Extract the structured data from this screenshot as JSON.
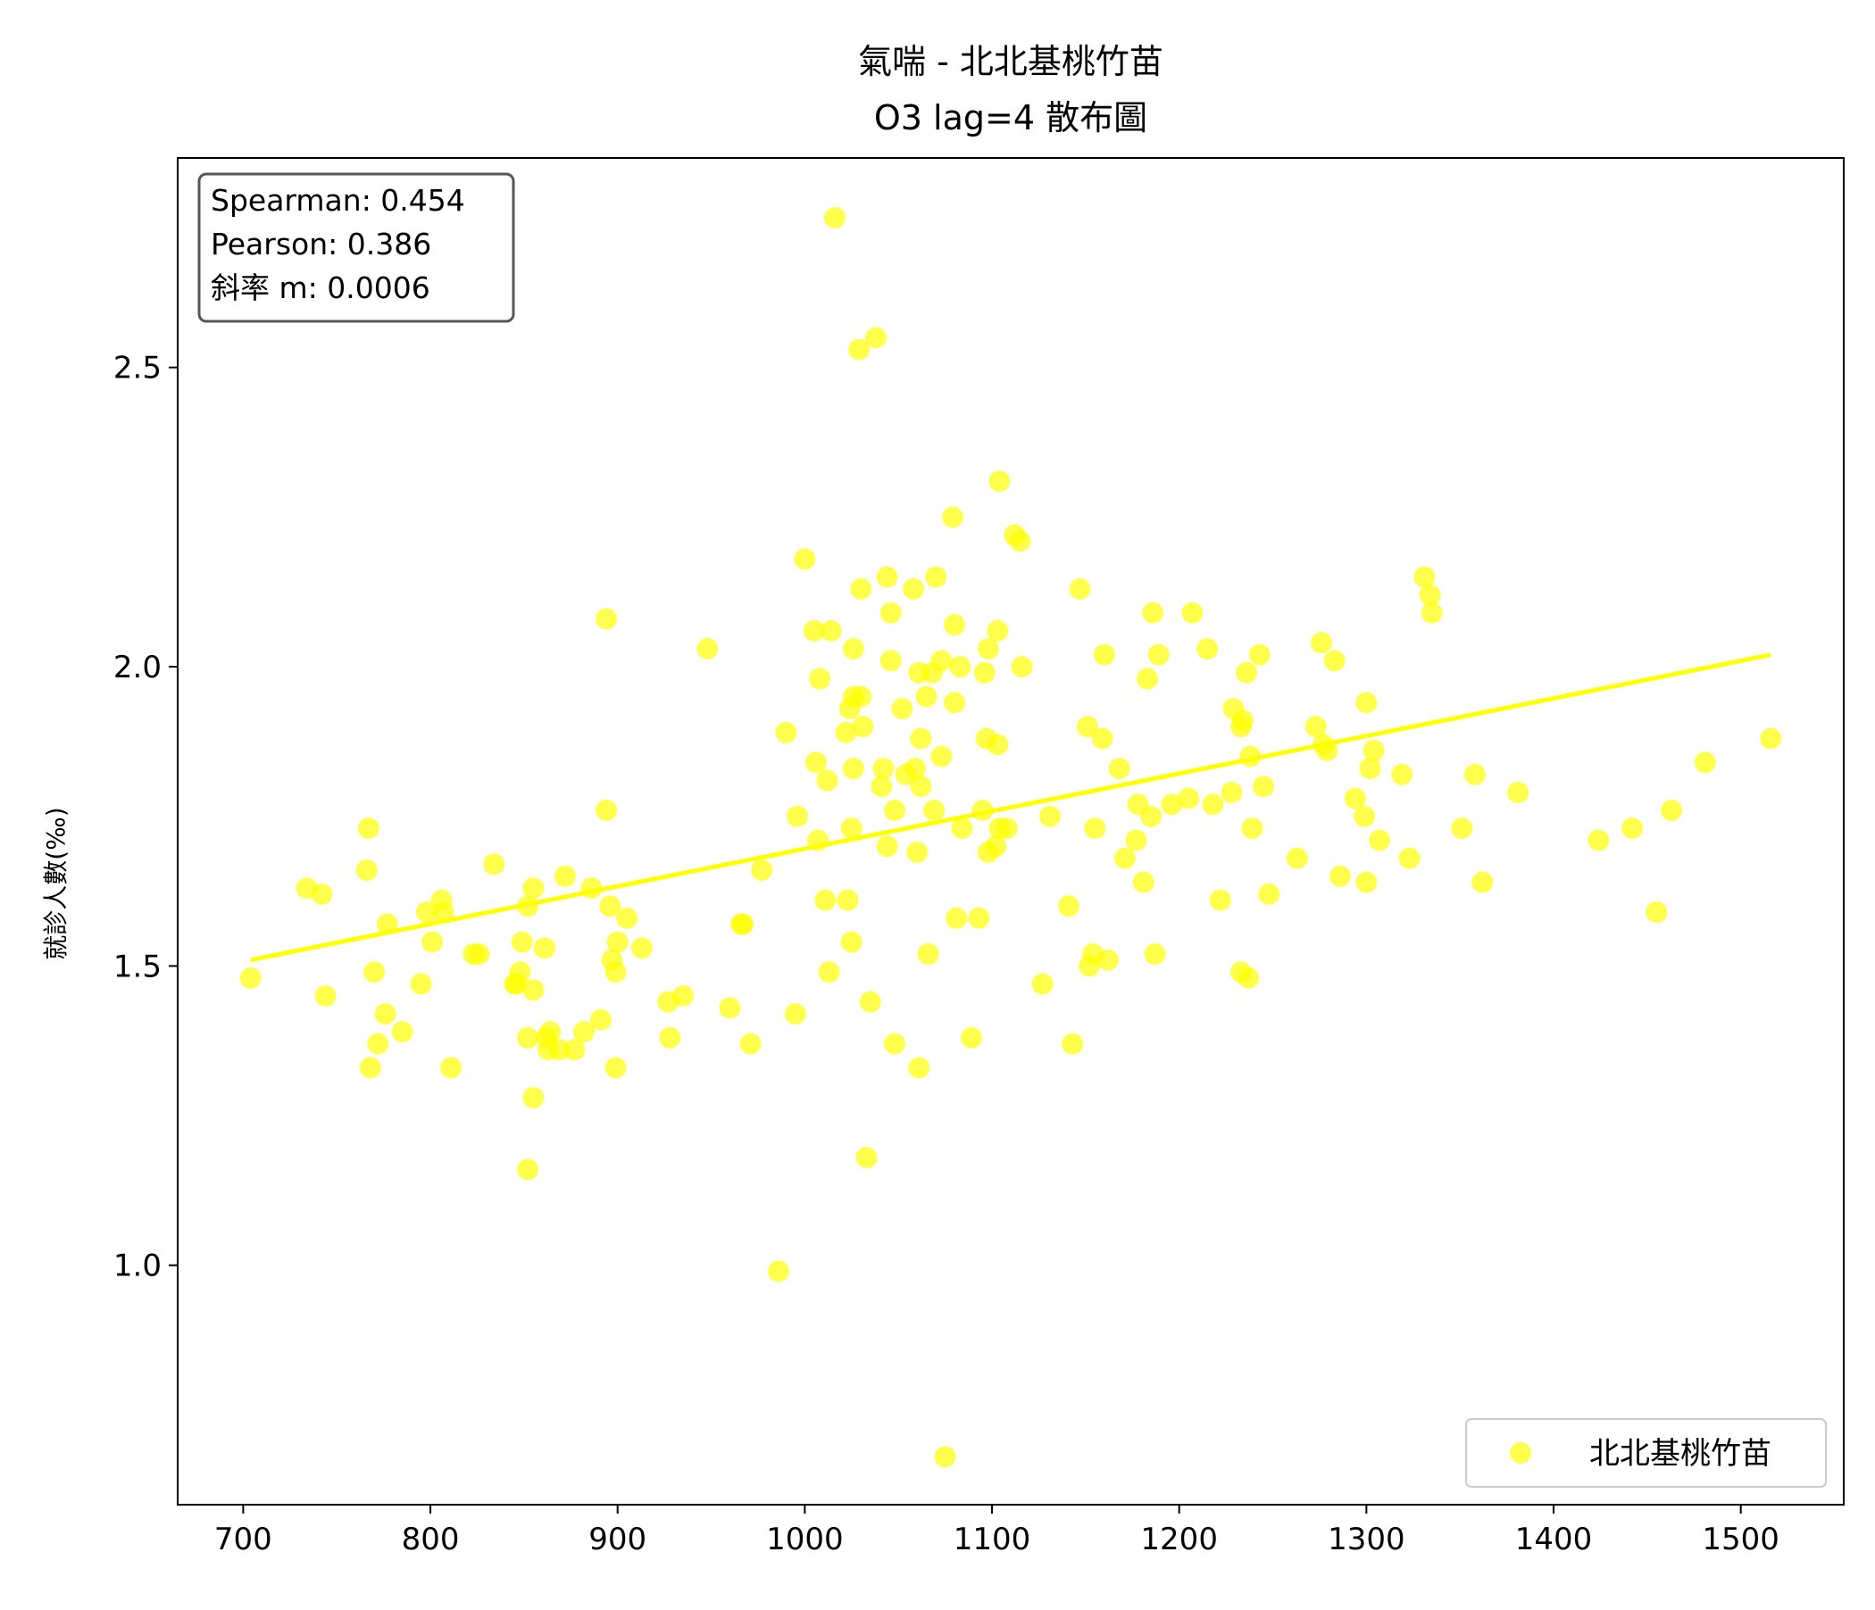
{
  "chart_data": {
    "type": "scatter",
    "title_line1": "氣喘 - 北北基桃竹苗",
    "title_line2": "O3 lag=4 散布圖",
    "xlabel": "",
    "ylabel": "就診人數(‰)",
    "xlim": [
      665,
      1555
    ],
    "ylim": [
      0.6,
      2.85
    ],
    "x_ticks": [
      700,
      800,
      900,
      1000,
      1100,
      1200,
      1300,
      1400,
      1500
    ],
    "y_ticks": [
      1.0,
      1.5,
      2.0,
      2.5
    ],
    "grid": false,
    "legend_position": "bottom-right",
    "stats": {
      "spearman": "Spearman: 0.454",
      "pearson": "Pearson: 0.386",
      "slope": "斜率 m: 0.0006"
    },
    "colors": {
      "points": "#ffff00",
      "fit_line": "#ffff00"
    },
    "fit_line": {
      "x": [
        704,
        1516
      ],
      "y": [
        1.51,
        2.02
      ]
    },
    "series": [
      {
        "name": "北北基桃竹苗",
        "points": [
          [
            704,
            1.48
          ],
          [
            734,
            1.63
          ],
          [
            742,
            1.62
          ],
          [
            744,
            1.45
          ],
          [
            766,
            1.66
          ],
          [
            767,
            1.73
          ],
          [
            768,
            1.33
          ],
          [
            770,
            1.49
          ],
          [
            772,
            1.37
          ],
          [
            776,
            1.42
          ],
          [
            777,
            1.57
          ],
          [
            785,
            1.39
          ],
          [
            795,
            1.47
          ],
          [
            798,
            1.59
          ],
          [
            801,
            1.54
          ],
          [
            806,
            1.61
          ],
          [
            807,
            1.59
          ],
          [
            811,
            1.33
          ],
          [
            823,
            1.52
          ],
          [
            826,
            1.52
          ],
          [
            834,
            1.67
          ],
          [
            845,
            1.47
          ],
          [
            846,
            1.47
          ],
          [
            848,
            1.49
          ],
          [
            849,
            1.54
          ],
          [
            852,
            1.6
          ],
          [
            852,
            1.38
          ],
          [
            852,
            1.16
          ],
          [
            855,
            1.63
          ],
          [
            855,
            1.46
          ],
          [
            855,
            1.28
          ],
          [
            861,
            1.53
          ],
          [
            862,
            1.38
          ],
          [
            863,
            1.36
          ],
          [
            864,
            1.39
          ],
          [
            869,
            1.36
          ],
          [
            872,
            1.65
          ],
          [
            877,
            1.36
          ],
          [
            882,
            1.39
          ],
          [
            886,
            1.63
          ],
          [
            891,
            1.41
          ],
          [
            894,
            2.08
          ],
          [
            894,
            1.76
          ],
          [
            896,
            1.6
          ],
          [
            897,
            1.51
          ],
          [
            899,
            1.49
          ],
          [
            899,
            1.33
          ],
          [
            900,
            1.54
          ],
          [
            905,
            1.58
          ],
          [
            913,
            1.53
          ],
          [
            927,
            1.44
          ],
          [
            928,
            1.38
          ],
          [
            935,
            1.45
          ],
          [
            948,
            2.03
          ],
          [
            960,
            1.43
          ],
          [
            966,
            1.57
          ],
          [
            967,
            1.57
          ],
          [
            971,
            1.37
          ],
          [
            977,
            1.66
          ],
          [
            986,
            0.99
          ],
          [
            990,
            1.89
          ],
          [
            995,
            1.42
          ],
          [
            996,
            1.75
          ],
          [
            1000,
            2.18
          ],
          [
            1005,
            2.06
          ],
          [
            1006,
            1.84
          ],
          [
            1007,
            1.71
          ],
          [
            1008,
            1.98
          ],
          [
            1011,
            1.61
          ],
          [
            1012,
            1.81
          ],
          [
            1013,
            1.49
          ],
          [
            1014,
            2.06
          ],
          [
            1016,
            2.75
          ],
          [
            1022,
            1.89
          ],
          [
            1023,
            1.61
          ],
          [
            1024,
            1.93
          ],
          [
            1025,
            1.73
          ],
          [
            1025,
            1.54
          ],
          [
            1026,
            2.03
          ],
          [
            1026,
            1.83
          ],
          [
            1026,
            1.95
          ],
          [
            1029,
            2.53
          ],
          [
            1030,
            2.13
          ],
          [
            1030,
            1.95
          ],
          [
            1031,
            1.9
          ],
          [
            1033,
            1.18
          ],
          [
            1035,
            1.44
          ],
          [
            1038,
            2.55
          ],
          [
            1041,
            1.8
          ],
          [
            1042,
            1.83
          ],
          [
            1044,
            1.7
          ],
          [
            1044,
            2.15
          ],
          [
            1046,
            2.09
          ],
          [
            1046,
            2.01
          ],
          [
            1048,
            1.76
          ],
          [
            1048,
            1.37
          ],
          [
            1052,
            1.93
          ],
          [
            1054,
            1.82
          ],
          [
            1058,
            2.13
          ],
          [
            1059,
            1.83
          ],
          [
            1060,
            1.69
          ],
          [
            1061,
            1.99
          ],
          [
            1061,
            1.33
          ],
          [
            1062,
            1.88
          ],
          [
            1062,
            1.8
          ],
          [
            1065,
            1.95
          ],
          [
            1066,
            1.52
          ],
          [
            1068,
            1.99
          ],
          [
            1069,
            1.76
          ],
          [
            1070,
            2.15
          ],
          [
            1073,
            2.01
          ],
          [
            1073,
            1.85
          ],
          [
            1075,
            0.68
          ],
          [
            1079,
            2.25
          ],
          [
            1080,
            2.07
          ],
          [
            1080,
            1.94
          ],
          [
            1081,
            1.58
          ],
          [
            1083,
            2.0
          ],
          [
            1084,
            1.73
          ],
          [
            1089,
            1.38
          ],
          [
            1093,
            1.58
          ],
          [
            1095,
            1.76
          ],
          [
            1096,
            1.99
          ],
          [
            1097,
            1.88
          ],
          [
            1098,
            2.03
          ],
          [
            1098,
            1.69
          ],
          [
            1102,
            1.7
          ],
          [
            1103,
            2.06
          ],
          [
            1103,
            1.87
          ],
          [
            1104,
            1.73
          ],
          [
            1104,
            2.31
          ],
          [
            1108,
            1.73
          ],
          [
            1112,
            2.22
          ],
          [
            1115,
            2.21
          ],
          [
            1116,
            2.0
          ],
          [
            1127,
            1.47
          ],
          [
            1131,
            1.75
          ],
          [
            1141,
            1.6
          ],
          [
            1143,
            1.37
          ],
          [
            1147,
            2.13
          ],
          [
            1151,
            1.9
          ],
          [
            1152,
            1.5
          ],
          [
            1154,
            1.52
          ],
          [
            1155,
            1.73
          ],
          [
            1159,
            1.88
          ],
          [
            1160,
            2.02
          ],
          [
            1162,
            1.51
          ],
          [
            1168,
            1.83
          ],
          [
            1171,
            1.68
          ],
          [
            1177,
            1.71
          ],
          [
            1178,
            1.77
          ],
          [
            1181,
            1.64
          ],
          [
            1183,
            1.98
          ],
          [
            1185,
            1.75
          ],
          [
            1186,
            2.09
          ],
          [
            1187,
            1.52
          ],
          [
            1189,
            2.02
          ],
          [
            1196,
            1.77
          ],
          [
            1205,
            1.78
          ],
          [
            1207,
            2.09
          ],
          [
            1215,
            2.03
          ],
          [
            1218,
            1.77
          ],
          [
            1222,
            1.61
          ],
          [
            1228,
            1.79
          ],
          [
            1229,
            1.93
          ],
          [
            1233,
            1.49
          ],
          [
            1233,
            1.9
          ],
          [
            1234,
            1.91
          ],
          [
            1236,
            1.99
          ],
          [
            1237,
            1.48
          ],
          [
            1238,
            1.85
          ],
          [
            1239,
            1.73
          ],
          [
            1243,
            2.02
          ],
          [
            1245,
            1.8
          ],
          [
            1248,
            1.62
          ],
          [
            1263,
            1.68
          ],
          [
            1273,
            1.9
          ],
          [
            1276,
            2.04
          ],
          [
            1277,
            1.87
          ],
          [
            1279,
            1.86
          ],
          [
            1283,
            2.01
          ],
          [
            1286,
            1.65
          ],
          [
            1294,
            1.78
          ],
          [
            1299,
            1.75
          ],
          [
            1300,
            1.64
          ],
          [
            1300,
            1.94
          ],
          [
            1302,
            1.83
          ],
          [
            1304,
            1.86
          ],
          [
            1307,
            1.71
          ],
          [
            1319,
            1.82
          ],
          [
            1323,
            1.68
          ],
          [
            1331,
            2.15
          ],
          [
            1334,
            2.12
          ],
          [
            1335,
            2.09
          ],
          [
            1351,
            1.73
          ],
          [
            1358,
            1.82
          ],
          [
            1362,
            1.64
          ],
          [
            1381,
            1.79
          ],
          [
            1424,
            1.71
          ],
          [
            1442,
            1.73
          ],
          [
            1455,
            1.59
          ],
          [
            1463,
            1.76
          ],
          [
            1481,
            1.84
          ],
          [
            1516,
            1.88
          ]
        ]
      }
    ]
  }
}
